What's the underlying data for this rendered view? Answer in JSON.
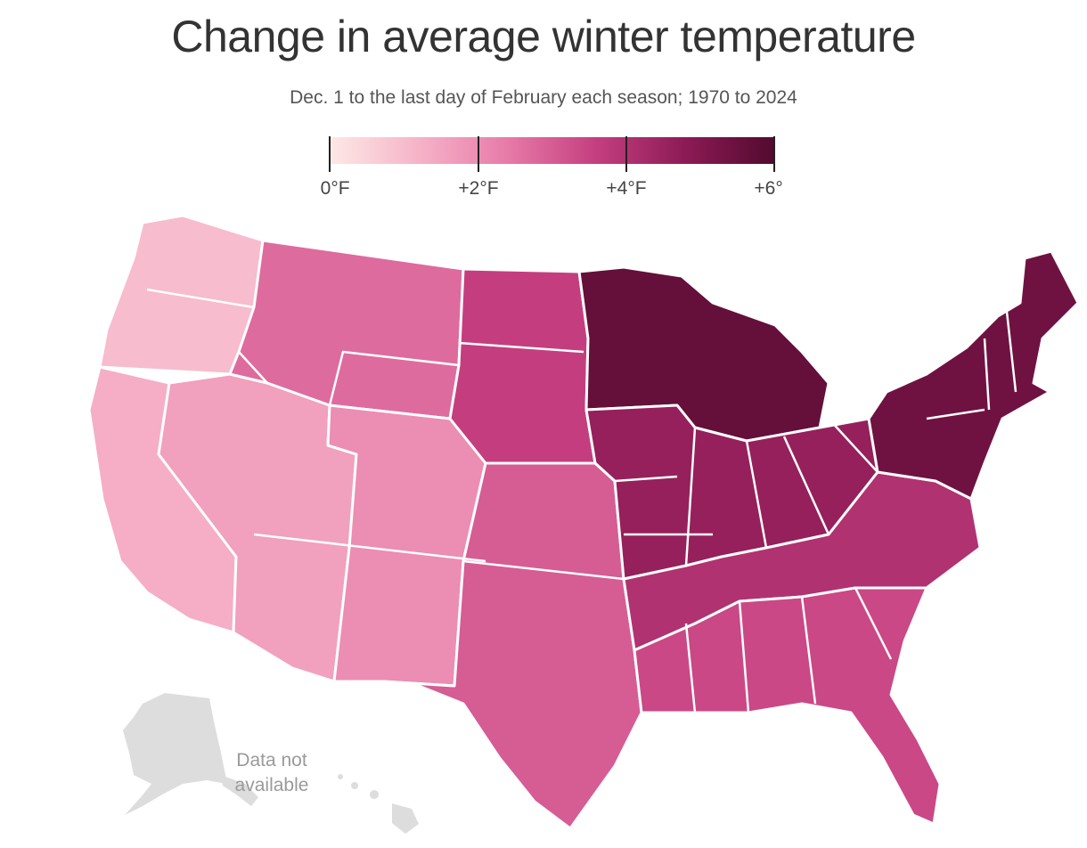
{
  "title": "Change in average winter temperature",
  "subtitle": "Dec. 1 to the last day of February each season; 1970 to 2024",
  "legend": {
    "ticks": [
      "+0°F",
      "+2°F",
      "+4°F",
      "+6°F"
    ],
    "gradient": [
      "#fde9e6",
      "#f6b3c8",
      "#e77aa8",
      "#c43e7f",
      "#8c1a55",
      "#520a2e"
    ]
  },
  "map_note": {
    "line1": "Data not",
    "line2": "available"
  },
  "colors": {
    "outline": "#ffffff",
    "no_data": "#dddddd"
  },
  "map_data": {
    "unit": "°F",
    "range": [
      0,
      6
    ],
    "regions": [
      {
        "id": "pacific-northwest",
        "value": 1.0
      },
      {
        "id": "california",
        "value": 1.3
      },
      {
        "id": "great-basin-southwest",
        "value": 1.6
      },
      {
        "id": "northern-rockies",
        "value": 2.7
      },
      {
        "id": "southern-rockies",
        "value": 2.0
      },
      {
        "id": "northern-plains",
        "value": 3.6
      },
      {
        "id": "southern-plains",
        "value": 3.0
      },
      {
        "id": "upper-midwest",
        "value": 5.6
      },
      {
        "id": "midwest",
        "value": 4.6
      },
      {
        "id": "south",
        "value": 4.0
      },
      {
        "id": "southeast-gulf",
        "value": 3.4
      },
      {
        "id": "northeast",
        "value": 5.4
      }
    ]
  }
}
